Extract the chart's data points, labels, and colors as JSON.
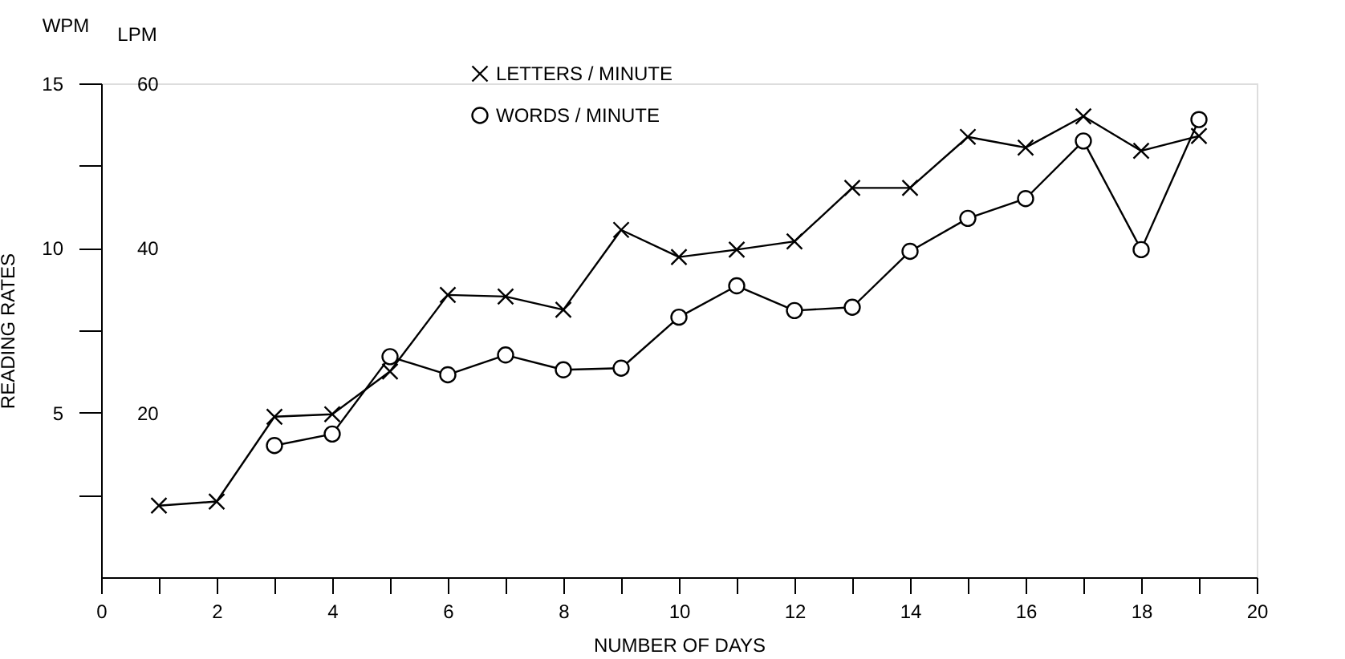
{
  "chart_data": {
    "type": "line",
    "xlabel": "NUMBER OF DAYS",
    "ylabel": "READING RATES",
    "y2label": "LPM",
    "annotations": [
      "WPM"
    ],
    "x": [
      1,
      2,
      3,
      4,
      5,
      6,
      7,
      8,
      9,
      10,
      11,
      12,
      13,
      14,
      15,
      16,
      17,
      18,
      19
    ],
    "series": [
      {
        "name": "LETTERS / MINUTE",
        "color": "#000000",
        "axis": "y2",
        "marker": "cross",
        "values": [
          8.7,
          9.2,
          19.5,
          19.8,
          25,
          34.3,
          34.1,
          32.5,
          42.2,
          38.9,
          39.8,
          40.8,
          47.3,
          47.3,
          53.5,
          52.2,
          56,
          51.8,
          53.6
        ]
      },
      {
        "name": "WORDS / MINUTE",
        "color": "#000000",
        "marker": "circle",
        "values": [
          null,
          null,
          4.0,
          4.35,
          6.7,
          6.15,
          6.75,
          6.3,
          6.35,
          7.9,
          8.85,
          8.1,
          8.2,
          9.9,
          10.9,
          11.5,
          13.25,
          9.95,
          13.9
        ]
      }
    ],
    "xlim": [
      0,
      20
    ],
    "xticks": [
      0,
      {
        "value": 1,
        "label": null
      },
      2,
      {
        "value": 3,
        "label": null
      },
      4,
      {
        "value": 5,
        "label": null
      },
      6,
      {
        "value": 7,
        "label": null
      },
      8,
      {
        "value": 9,
        "label": null
      },
      10,
      {
        "value": 11,
        "label": null
      },
      12,
      {
        "value": 13,
        "label": null
      },
      14,
      {
        "value": 15,
        "label": null
      },
      16,
      {
        "value": 17,
        "label": null
      },
      18,
      {
        "value": 19,
        "label": null
      },
      20
    ],
    "ylim": [
      0,
      15
    ],
    "yticks": [
      {
        "value": 2.5,
        "label": null
      },
      5,
      {
        "value": 7.5,
        "label": null
      },
      10,
      {
        "value": 12.5,
        "label": null
      },
      15
    ],
    "y2lim": [
      0,
      60
    ],
    "y2ticks": [
      20,
      40,
      60
    ],
    "grid": false,
    "legend": "top",
    "line_style": "solid"
  }
}
